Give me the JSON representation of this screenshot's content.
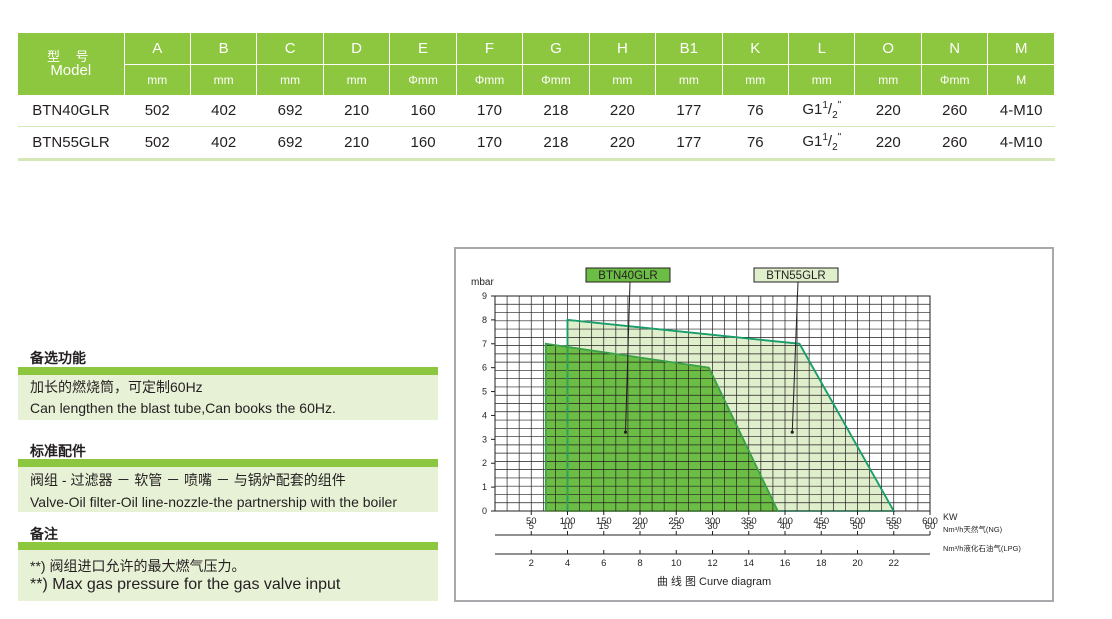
{
  "table": {
    "model_header_cn": "型 号",
    "model_header_en": "Model",
    "columns": [
      {
        "label": "A",
        "unit": "mm"
      },
      {
        "label": "B",
        "unit": "mm"
      },
      {
        "label": "C",
        "unit": "mm"
      },
      {
        "label": "D",
        "unit": "mm"
      },
      {
        "label": "E",
        "unit": "Φmm"
      },
      {
        "label": "F",
        "unit": "Φmm"
      },
      {
        "label": "G",
        "unit": "Φmm"
      },
      {
        "label": "H",
        "unit": "mm"
      },
      {
        "label": "B1",
        "unit": "mm"
      },
      {
        "label": "K",
        "unit": "mm"
      },
      {
        "label": "L",
        "unit": "mm"
      },
      {
        "label": "O",
        "unit": "mm"
      },
      {
        "label": "N",
        "unit": "Φmm"
      },
      {
        "label": "M",
        "unit": "M"
      }
    ],
    "rows": [
      {
        "model": "BTN40GLR",
        "values": [
          "502",
          "402",
          "692",
          "210",
          "160",
          "170",
          "218",
          "220",
          "177",
          "76",
          "G1",
          "220",
          "260",
          "4-M10"
        ]
      },
      {
        "model": "BTN55GLR",
        "values": [
          "502",
          "402",
          "692",
          "210",
          "160",
          "170",
          "218",
          "220",
          "177",
          "76",
          "G1",
          "220",
          "260",
          "4-M10"
        ]
      }
    ],
    "thread_fraction_num": "1",
    "thread_fraction_den": "2",
    "thread_fraction_mark": "\""
  },
  "options": {
    "title": "备选功能",
    "line1": "加长的燃烧筒，可定制60Hz",
    "line2": "Can lengthen the blast tube,Can books the 60Hz."
  },
  "standard": {
    "title": "标准配件",
    "line1": "阀组 -  过滤器 － 软管 － 喷嘴 － 与锅炉配套的组件",
    "line2": "Valve-Oil filter-Oil line-nozzle-the partnership with the boiler"
  },
  "notes": {
    "title": "备注",
    "line1": "**) 阀组进口允许的最大燃气压力。",
    "line2": "**) Max gas pressure for the gas valve input"
  },
  "chart_data": {
    "type": "area",
    "caption": "曲 线 图  Curve diagram",
    "ylabel": "mbar",
    "ylim": [
      0,
      9
    ],
    "yticks": [
      0,
      1,
      2,
      3,
      4,
      5,
      6,
      7,
      8,
      9
    ],
    "x_axes": [
      {
        "unit": "KW",
        "range": [
          0,
          600
        ],
        "ticks": [
          50,
          100,
          150,
          200,
          250,
          300,
          350,
          400,
          450,
          500,
          550,
          600
        ]
      },
      {
        "unit": "Nm³/h天然气(NG)",
        "range": [
          0,
          60
        ],
        "ticks": [
          5,
          10,
          15,
          20,
          25,
          30,
          35,
          40,
          45,
          50,
          55,
          60
        ]
      },
      {
        "unit": "Nm³/h液化石油气(LPG)",
        "range": [
          0,
          24
        ],
        "ticks": [
          2,
          4,
          6,
          8,
          10,
          12,
          14,
          16,
          18,
          20,
          22
        ]
      }
    ],
    "grid": true,
    "series": [
      {
        "name": "BTN40GLR",
        "color": "#6cbd45",
        "fill": "#6cbd45",
        "x": [
          70,
          70,
          295,
          390
        ],
        "y": [
          0,
          7,
          6,
          0
        ]
      },
      {
        "name": "BTN55GLR",
        "color": "#1a9e6a",
        "fill": "#dfeecb",
        "x": [
          100,
          100,
          420,
          550
        ],
        "y": [
          0,
          8,
          7,
          0
        ]
      }
    ],
    "marker_line_x": 100,
    "colors": {
      "grid": "#231f20",
      "accent": "#8dc63f"
    }
  }
}
